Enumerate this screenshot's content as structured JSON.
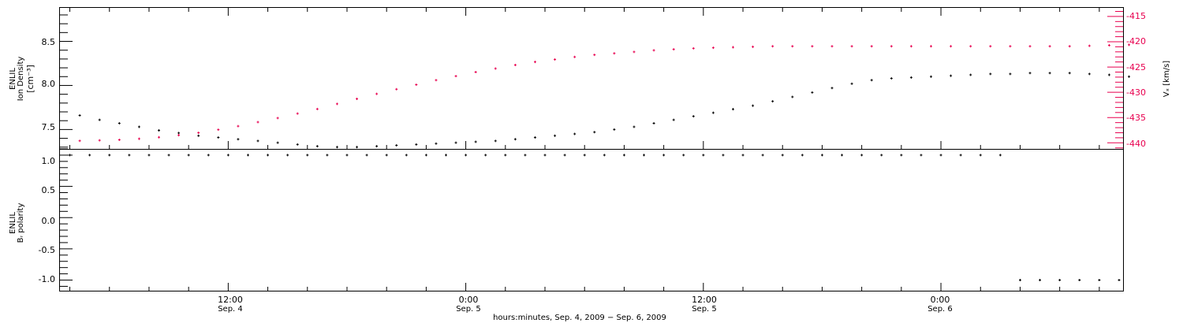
{
  "chart_data": [
    {
      "type": "scatter",
      "ylabel_line1": "ENLIL",
      "ylabel_line2": "Ion Density",
      "ylabel_units": "[cm⁻³]",
      "y2label": "Vₓ [km/s]",
      "ylim": [
        7.28,
        8.88
      ],
      "y2lim": [
        -441.2,
        -413.3
      ],
      "yticks": [
        "7.5",
        "8.0",
        "8.5"
      ],
      "y2ticks": [
        "-440",
        "-435",
        "-430",
        "-425",
        "-420",
        "-415"
      ],
      "colors": {
        "density": "#000000",
        "vx": "#e8004f"
      },
      "series": [
        {
          "key": "density",
          "x": [
            0.5,
            1.5,
            2.5,
            3.5,
            4.5,
            5.5,
            6.5,
            7.5,
            8.5,
            9.5,
            10.5,
            11.5,
            12.5,
            13.5,
            14.5,
            15.5,
            16.5,
            17.5,
            18.5,
            19.5,
            20.5,
            21.5,
            22.5,
            23.5,
            24.5,
            25.5,
            26.5,
            27.5,
            28.5,
            29.5,
            30.5,
            31.5,
            32.5,
            33.5,
            34.5,
            35.5,
            36.5,
            37.5,
            38.5,
            39.5,
            40.5,
            41.5,
            42.5,
            43.5,
            44.5,
            45.5,
            46.5,
            47.5,
            48.5,
            49.5,
            50.5,
            51.5,
            52.5,
            53.5
          ],
          "values": [
            7.66,
            7.61,
            7.57,
            7.53,
            7.49,
            7.46,
            7.43,
            7.41,
            7.39,
            7.37,
            7.35,
            7.33,
            7.31,
            7.3,
            7.3,
            7.31,
            7.32,
            7.33,
            7.34,
            7.35,
            7.36,
            7.37,
            7.39,
            7.41,
            7.43,
            7.45,
            7.47,
            7.5,
            7.53,
            7.57,
            7.61,
            7.65,
            7.69,
            7.73,
            7.77,
            7.82,
            7.87,
            7.92,
            7.97,
            8.02,
            8.06,
            8.08,
            8.09,
            8.1,
            8.11,
            8.12,
            8.13,
            8.13,
            8.14,
            8.14,
            8.14,
            8.13,
            8.12,
            8.1
          ]
        },
        {
          "key": "vx",
          "x": [
            0.5,
            1.5,
            2.5,
            3.5,
            4.5,
            5.5,
            6.5,
            7.5,
            8.5,
            9.5,
            10.5,
            11.5,
            12.5,
            13.5,
            14.5,
            15.5,
            16.5,
            17.5,
            18.5,
            19.5,
            20.5,
            21.5,
            22.5,
            23.5,
            24.5,
            25.5,
            26.5,
            27.5,
            28.5,
            29.5,
            30.5,
            31.5,
            32.5,
            33.5,
            34.5,
            35.5,
            36.5,
            37.5,
            38.5,
            39.5,
            40.5,
            41.5,
            42.5,
            43.5,
            44.5,
            45.5,
            46.5,
            47.5,
            48.5,
            49.5,
            50.5,
            51.5,
            52.5,
            53.5
          ],
          "values": [
            -439.6,
            -439.5,
            -439.4,
            -439.2,
            -438.9,
            -438.5,
            -438.0,
            -437.4,
            -436.7,
            -435.9,
            -435.1,
            -434.2,
            -433.3,
            -432.3,
            -431.3,
            -430.3,
            -429.4,
            -428.5,
            -427.6,
            -426.8,
            -426.0,
            -425.3,
            -424.6,
            -424.0,
            -423.5,
            -423.0,
            -422.6,
            -422.3,
            -422.0,
            -421.7,
            -421.5,
            -421.3,
            -421.2,
            -421.1,
            -421.0,
            -420.9,
            -420.9,
            -420.9,
            -420.9,
            -420.9,
            -420.9,
            -420.9,
            -420.9,
            -420.9,
            -420.9,
            -420.9,
            -420.9,
            -420.9,
            -420.9,
            -420.9,
            -420.9,
            -420.8,
            -420.7,
            -420.6
          ]
        }
      ]
    },
    {
      "type": "scatter",
      "ylabel_line1": "ENLIL",
      "ylabel_line2": "Bᵣ polarity",
      "ylim": [
        -1.17,
        1.1
      ],
      "yticks": [
        "-1.0",
        "-0.5",
        "0.0",
        "0.5",
        "1.0"
      ],
      "series": [
        {
          "key": "polarity",
          "x": [
            0,
            1,
            2,
            3,
            4,
            5,
            6,
            7,
            8,
            9,
            10,
            11,
            12,
            13,
            14,
            15,
            16,
            17,
            18,
            19,
            20,
            21,
            22,
            23,
            24,
            25,
            26,
            27,
            28,
            29,
            30,
            31,
            32,
            33,
            34,
            35,
            36,
            37,
            38,
            39,
            40,
            41,
            42,
            43,
            44,
            45,
            46,
            47,
            48,
            49,
            50,
            51,
            52,
            53
          ],
          "values": [
            1,
            1,
            1,
            1,
            1,
            1,
            1,
            1,
            1,
            1,
            1,
            1,
            1,
            1,
            1,
            1,
            1,
            1,
            1,
            1,
            1,
            1,
            1,
            1,
            1,
            1,
            1,
            1,
            1,
            1,
            1,
            1,
            1,
            1,
            1,
            1,
            1,
            1,
            1,
            1,
            1,
            1,
            1,
            1,
            1,
            1,
            1,
            1,
            -1,
            -1,
            -1,
            -1,
            -1,
            -1
          ]
        }
      ]
    }
  ],
  "x_axis": {
    "xlim": [
      -0.5,
      53.2
    ],
    "ticks": [
      {
        "x": 8,
        "time": "12:00",
        "date": "Sep. 4"
      },
      {
        "x": 20,
        "time": "0:00",
        "date": "Sep. 5"
      },
      {
        "x": 32,
        "time": "12:00",
        "date": "Sep. 5"
      },
      {
        "x": 44,
        "time": "0:00",
        "date": "Sep. 6"
      }
    ],
    "xlabel": "hours:minutes, Sep.  4, 2009 − Sep.  6, 2009"
  }
}
